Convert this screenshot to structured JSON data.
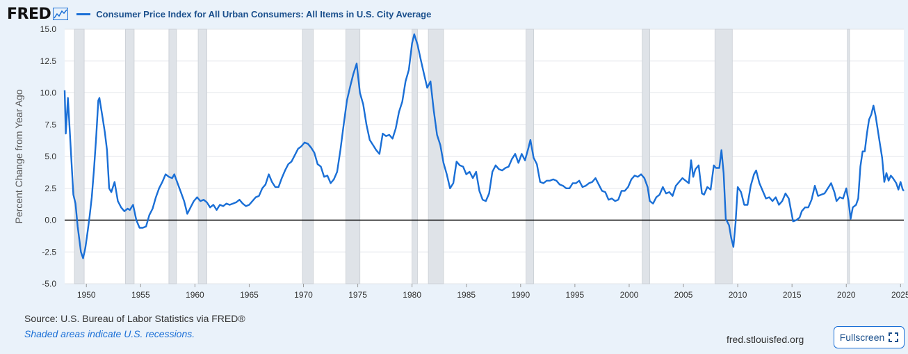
{
  "header": {
    "logo_text": "FRED",
    "series_title": "Consumer Price Index for All Urban Consumers: All Items in U.S. City Average"
  },
  "footer": {
    "source": "Source: U.S. Bureau of Labor Statistics via FRED®",
    "note": "Shaded areas indicate U.S. recessions.",
    "site": "fred.stlouisfed.org",
    "fullscreen_label": "Fullscreen"
  },
  "colors": {
    "line": "#1a6fd6",
    "recession": "#dfe3e8",
    "zero_line": "#000000",
    "background": "#eaf2fa"
  },
  "chart_data": {
    "type": "line",
    "title": "Consumer Price Index for All Urban Consumers: All Items in U.S. City Average",
    "ylabel": "Percent Change from Year Ago",
    "xlim": [
      1948.0,
      2025.3
    ],
    "ylim": [
      -5.0,
      15.0
    ],
    "yticks": [
      -5.0,
      -2.5,
      0.0,
      2.5,
      5.0,
      7.5,
      10.0,
      12.5,
      15.0
    ],
    "ytick_labels": [
      "-5.0",
      "-2.5",
      "0.0",
      "2.5",
      "5.0",
      "7.5",
      "10.0",
      "12.5",
      "15.0"
    ],
    "xticks": [
      1950,
      1955,
      1960,
      1965,
      1970,
      1975,
      1980,
      1985,
      1990,
      1995,
      2000,
      2005,
      2010,
      2015,
      2020,
      2025
    ],
    "xtick_labels": [
      "1950",
      "1955",
      "1960",
      "1965",
      "1970",
      "1975",
      "1980",
      "1985",
      "1990",
      "1995",
      "2000",
      "2005",
      "2010",
      "2015",
      "2020",
      "2025"
    ],
    "grid": "horizontal",
    "recessions": [
      [
        1948.9,
        1949.8
      ],
      [
        1953.6,
        1954.4
      ],
      [
        1957.6,
        1958.3
      ],
      [
        1960.3,
        1961.1
      ],
      [
        1969.9,
        1970.9
      ],
      [
        1973.9,
        1975.2
      ],
      [
        1980.0,
        1980.5
      ],
      [
        1981.5,
        1982.9
      ],
      [
        1990.5,
        1991.2
      ],
      [
        2001.2,
        2001.9
      ],
      [
        2007.9,
        2009.5
      ],
      [
        2020.1,
        2020.3
      ]
    ],
    "series": [
      {
        "values": [
          [
            1948.0,
            10.2
          ],
          [
            1948.1,
            6.8
          ],
          [
            1948.3,
            9.6
          ],
          [
            1948.6,
            5.0
          ],
          [
            1948.8,
            2.0
          ],
          [
            1949.0,
            1.3
          ],
          [
            1949.2,
            -0.5
          ],
          [
            1949.5,
            -2.5
          ],
          [
            1949.7,
            -3.0
          ],
          [
            1949.9,
            -2.2
          ],
          [
            1950.1,
            -1.0
          ],
          [
            1950.3,
            0.3
          ],
          [
            1950.5,
            1.8
          ],
          [
            1950.7,
            4.0
          ],
          [
            1950.9,
            6.5
          ],
          [
            1951.1,
            9.4
          ],
          [
            1951.2,
            9.6
          ],
          [
            1951.5,
            8.0
          ],
          [
            1951.7,
            6.9
          ],
          [
            1951.9,
            5.5
          ],
          [
            1952.1,
            2.5
          ],
          [
            1952.3,
            2.2
          ],
          [
            1952.6,
            3.0
          ],
          [
            1952.9,
            1.5
          ],
          [
            1953.2,
            1.0
          ],
          [
            1953.5,
            0.7
          ],
          [
            1953.8,
            0.9
          ],
          [
            1954.0,
            0.8
          ],
          [
            1954.3,
            1.2
          ],
          [
            1954.6,
            0.0
          ],
          [
            1954.9,
            -0.6
          ],
          [
            1955.2,
            -0.6
          ],
          [
            1955.5,
            -0.5
          ],
          [
            1955.8,
            0.4
          ],
          [
            1956.1,
            0.9
          ],
          [
            1956.4,
            1.8
          ],
          [
            1956.7,
            2.5
          ],
          [
            1957.0,
            3.0
          ],
          [
            1957.3,
            3.6
          ],
          [
            1957.6,
            3.4
          ],
          [
            1957.9,
            3.3
          ],
          [
            1958.1,
            3.6
          ],
          [
            1958.4,
            2.9
          ],
          [
            1958.7,
            2.2
          ],
          [
            1959.0,
            1.5
          ],
          [
            1959.3,
            0.5
          ],
          [
            1959.6,
            1.0
          ],
          [
            1959.9,
            1.5
          ],
          [
            1960.2,
            1.8
          ],
          [
            1960.5,
            1.5
          ],
          [
            1960.8,
            1.6
          ],
          [
            1961.1,
            1.4
          ],
          [
            1961.4,
            1.0
          ],
          [
            1961.7,
            1.2
          ],
          [
            1962.0,
            0.8
          ],
          [
            1962.3,
            1.2
          ],
          [
            1962.6,
            1.1
          ],
          [
            1962.9,
            1.3
          ],
          [
            1963.2,
            1.2
          ],
          [
            1963.5,
            1.3
          ],
          [
            1963.8,
            1.4
          ],
          [
            1964.1,
            1.6
          ],
          [
            1964.4,
            1.3
          ],
          [
            1964.7,
            1.1
          ],
          [
            1965.0,
            1.2
          ],
          [
            1965.3,
            1.5
          ],
          [
            1965.6,
            1.8
          ],
          [
            1965.9,
            1.9
          ],
          [
            1966.2,
            2.5
          ],
          [
            1966.5,
            2.8
          ],
          [
            1966.8,
            3.6
          ],
          [
            1967.1,
            3.0
          ],
          [
            1967.4,
            2.6
          ],
          [
            1967.7,
            2.6
          ],
          [
            1968.0,
            3.3
          ],
          [
            1968.3,
            3.9
          ],
          [
            1968.6,
            4.4
          ],
          [
            1968.9,
            4.6
          ],
          [
            1969.2,
            5.1
          ],
          [
            1969.5,
            5.6
          ],
          [
            1969.8,
            5.8
          ],
          [
            1970.1,
            6.1
          ],
          [
            1970.4,
            6.0
          ],
          [
            1970.7,
            5.7
          ],
          [
            1971.0,
            5.3
          ],
          [
            1971.3,
            4.4
          ],
          [
            1971.6,
            4.2
          ],
          [
            1971.9,
            3.4
          ],
          [
            1972.2,
            3.5
          ],
          [
            1972.5,
            2.9
          ],
          [
            1972.8,
            3.2
          ],
          [
            1973.1,
            3.8
          ],
          [
            1973.4,
            5.5
          ],
          [
            1973.7,
            7.5
          ],
          [
            1974.0,
            9.4
          ],
          [
            1974.3,
            10.5
          ],
          [
            1974.6,
            11.5
          ],
          [
            1974.9,
            12.3
          ],
          [
            1975.2,
            10.0
          ],
          [
            1975.5,
            9.1
          ],
          [
            1975.8,
            7.5
          ],
          [
            1976.1,
            6.3
          ],
          [
            1976.4,
            5.9
          ],
          [
            1976.7,
            5.5
          ],
          [
            1977.0,
            5.2
          ],
          [
            1977.3,
            6.8
          ],
          [
            1977.6,
            6.6
          ],
          [
            1977.9,
            6.7
          ],
          [
            1978.2,
            6.4
          ],
          [
            1978.5,
            7.2
          ],
          [
            1978.8,
            8.5
          ],
          [
            1979.1,
            9.3
          ],
          [
            1979.4,
            10.9
          ],
          [
            1979.7,
            11.8
          ],
          [
            1980.0,
            13.9
          ],
          [
            1980.2,
            14.6
          ],
          [
            1980.5,
            13.8
          ],
          [
            1980.8,
            12.6
          ],
          [
            1981.1,
            11.5
          ],
          [
            1981.4,
            10.4
          ],
          [
            1981.7,
            10.9
          ],
          [
            1982.0,
            8.6
          ],
          [
            1982.3,
            6.7
          ],
          [
            1982.6,
            5.9
          ],
          [
            1982.9,
            4.5
          ],
          [
            1983.2,
            3.6
          ],
          [
            1983.5,
            2.5
          ],
          [
            1983.8,
            2.9
          ],
          [
            1984.1,
            4.6
          ],
          [
            1984.4,
            4.3
          ],
          [
            1984.7,
            4.2
          ],
          [
            1985.0,
            3.6
          ],
          [
            1985.3,
            3.8
          ],
          [
            1985.6,
            3.3
          ],
          [
            1985.9,
            3.8
          ],
          [
            1986.2,
            2.3
          ],
          [
            1986.5,
            1.6
          ],
          [
            1986.8,
            1.5
          ],
          [
            1987.1,
            2.1
          ],
          [
            1987.4,
            3.8
          ],
          [
            1987.7,
            4.3
          ],
          [
            1988.0,
            4.0
          ],
          [
            1988.3,
            3.9
          ],
          [
            1988.6,
            4.1
          ],
          [
            1988.9,
            4.2
          ],
          [
            1989.2,
            4.8
          ],
          [
            1989.5,
            5.2
          ],
          [
            1989.8,
            4.5
          ],
          [
            1990.1,
            5.2
          ],
          [
            1990.4,
            4.7
          ],
          [
            1990.7,
            5.6
          ],
          [
            1990.9,
            6.3
          ],
          [
            1991.2,
            4.9
          ],
          [
            1991.5,
            4.4
          ],
          [
            1991.8,
            3.0
          ],
          [
            1992.1,
            2.9
          ],
          [
            1992.4,
            3.1
          ],
          [
            1992.7,
            3.1
          ],
          [
            1993.0,
            3.2
          ],
          [
            1993.3,
            3.1
          ],
          [
            1993.6,
            2.8
          ],
          [
            1993.9,
            2.7
          ],
          [
            1994.2,
            2.5
          ],
          [
            1994.5,
            2.5
          ],
          [
            1994.8,
            2.9
          ],
          [
            1995.1,
            2.9
          ],
          [
            1995.4,
            3.1
          ],
          [
            1995.7,
            2.6
          ],
          [
            1996.0,
            2.7
          ],
          [
            1996.3,
            2.9
          ],
          [
            1996.6,
            3.0
          ],
          [
            1996.9,
            3.3
          ],
          [
            1997.2,
            2.8
          ],
          [
            1997.5,
            2.3
          ],
          [
            1997.8,
            2.2
          ],
          [
            1998.1,
            1.6
          ],
          [
            1998.4,
            1.7
          ],
          [
            1998.7,
            1.5
          ],
          [
            1999.0,
            1.6
          ],
          [
            1999.3,
            2.3
          ],
          [
            1999.6,
            2.3
          ],
          [
            1999.9,
            2.6
          ],
          [
            2000.2,
            3.2
          ],
          [
            2000.5,
            3.5
          ],
          [
            2000.8,
            3.4
          ],
          [
            2001.1,
            3.6
          ],
          [
            2001.4,
            3.3
          ],
          [
            2001.7,
            2.6
          ],
          [
            2001.9,
            1.5
          ],
          [
            2002.2,
            1.3
          ],
          [
            2002.5,
            1.8
          ],
          [
            2002.8,
            2.0
          ],
          [
            2003.1,
            2.6
          ],
          [
            2003.4,
            2.1
          ],
          [
            2003.7,
            2.2
          ],
          [
            2004.0,
            1.9
          ],
          [
            2004.3,
            2.7
          ],
          [
            2004.6,
            3.0
          ],
          [
            2004.9,
            3.3
          ],
          [
            2005.2,
            3.1
          ],
          [
            2005.5,
            2.9
          ],
          [
            2005.7,
            4.7
          ],
          [
            2005.9,
            3.4
          ],
          [
            2006.1,
            4.0
          ],
          [
            2006.4,
            4.3
          ],
          [
            2006.7,
            2.1
          ],
          [
            2006.9,
            2.0
          ],
          [
            2007.2,
            2.6
          ],
          [
            2007.5,
            2.4
          ],
          [
            2007.8,
            4.3
          ],
          [
            2008.0,
            4.1
          ],
          [
            2008.3,
            4.1
          ],
          [
            2008.5,
            5.5
          ],
          [
            2008.7,
            3.7
          ],
          [
            2008.9,
            0.1
          ],
          [
            2009.2,
            -0.4
          ],
          [
            2009.4,
            -1.4
          ],
          [
            2009.6,
            -2.1
          ],
          [
            2009.8,
            -0.2
          ],
          [
            2010.0,
            2.6
          ],
          [
            2010.3,
            2.2
          ],
          [
            2010.6,
            1.2
          ],
          [
            2010.9,
            1.2
          ],
          [
            2011.2,
            2.7
          ],
          [
            2011.5,
            3.6
          ],
          [
            2011.7,
            3.9
          ],
          [
            2012.0,
            2.9
          ],
          [
            2012.3,
            2.3
          ],
          [
            2012.6,
            1.7
          ],
          [
            2012.9,
            1.8
          ],
          [
            2013.2,
            1.5
          ],
          [
            2013.5,
            1.8
          ],
          [
            2013.8,
            1.2
          ],
          [
            2014.1,
            1.5
          ],
          [
            2014.4,
            2.1
          ],
          [
            2014.7,
            1.7
          ],
          [
            2014.9,
            0.8
          ],
          [
            2015.1,
            -0.1
          ],
          [
            2015.4,
            0.0
          ],
          [
            2015.7,
            0.2
          ],
          [
            2015.9,
            0.7
          ],
          [
            2016.2,
            1.0
          ],
          [
            2016.5,
            1.0
          ],
          [
            2016.8,
            1.6
          ],
          [
            2017.1,
            2.7
          ],
          [
            2017.4,
            1.9
          ],
          [
            2017.7,
            2.0
          ],
          [
            2018.0,
            2.1
          ],
          [
            2018.3,
            2.5
          ],
          [
            2018.6,
            2.9
          ],
          [
            2018.9,
            2.2
          ],
          [
            2019.1,
            1.5
          ],
          [
            2019.4,
            1.8
          ],
          [
            2019.7,
            1.7
          ],
          [
            2020.0,
            2.5
          ],
          [
            2020.2,
            1.5
          ],
          [
            2020.4,
            0.1
          ],
          [
            2020.6,
            1.0
          ],
          [
            2020.9,
            1.2
          ],
          [
            2021.1,
            1.7
          ],
          [
            2021.3,
            4.2
          ],
          [
            2021.5,
            5.4
          ],
          [
            2021.7,
            5.4
          ],
          [
            2021.9,
            6.8
          ],
          [
            2022.1,
            7.9
          ],
          [
            2022.3,
            8.3
          ],
          [
            2022.5,
            9.0
          ],
          [
            2022.7,
            8.2
          ],
          [
            2022.9,
            7.1
          ],
          [
            2023.1,
            6.0
          ],
          [
            2023.3,
            4.9
          ],
          [
            2023.5,
            3.0
          ],
          [
            2023.7,
            3.7
          ],
          [
            2023.9,
            3.1
          ],
          [
            2024.1,
            3.5
          ],
          [
            2024.3,
            3.3
          ],
          [
            2024.6,
            2.9
          ],
          [
            2024.8,
            2.4
          ],
          [
            2025.0,
            3.0
          ],
          [
            2025.2,
            2.4
          ],
          [
            2025.3,
            2.3
          ]
        ]
      }
    ]
  }
}
